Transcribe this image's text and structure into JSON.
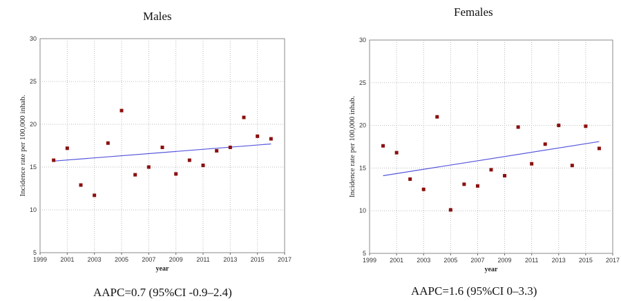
{
  "chart_data": [
    {
      "type": "scatter",
      "title": "Males",
      "xlabel": "year",
      "ylabel": "Incidence rate per 100,000 inhab.",
      "xlim": [
        1999,
        2017
      ],
      "ylim": [
        5,
        30
      ],
      "x_ticks": [
        "1999",
        "2001",
        "2003",
        "2005",
        "2007",
        "2009",
        "2011",
        "2013",
        "2015",
        "2017"
      ],
      "y_ticks": [
        "5",
        "10",
        "15",
        "20",
        "25",
        "30"
      ],
      "grid": true,
      "series": [
        {
          "x": [
            2000,
            2001,
            2002,
            2003,
            2004,
            2005,
            2006,
            2007,
            2008,
            2009,
            2010,
            2011,
            2012,
            2013,
            2014,
            2015,
            2016
          ],
          "y": [
            15.8,
            17.2,
            12.9,
            11.7,
            17.8,
            21.6,
            14.1,
            15.0,
            17.3,
            14.2,
            15.8,
            15.2,
            16.9,
            17.3,
            20.8,
            18.6,
            18.3
          ]
        }
      ],
      "trend": {
        "x": [
          2000,
          2016
        ],
        "y": [
          15.7,
          17.7
        ]
      },
      "point_color": "#8b1010",
      "trend_color": "#5555dd",
      "caption": "AAPC=0.7 (95%CI -0.9–2.4)"
    },
    {
      "type": "scatter",
      "title": "Females",
      "xlabel": "year",
      "ylabel": "Incidence rate per 100,000 inhab.",
      "xlim": [
        1999,
        2017
      ],
      "ylim": [
        5,
        30
      ],
      "x_ticks": [
        "1999",
        "2001",
        "2003",
        "2005",
        "2007",
        "2009",
        "2011",
        "2013",
        "2015",
        "2017"
      ],
      "y_ticks": [
        "5",
        "10",
        "15",
        "20",
        "25",
        "30"
      ],
      "grid": true,
      "series": [
        {
          "x": [
            2000,
            2001,
            2002,
            2003,
            2004,
            2005,
            2006,
            2007,
            2008,
            2009,
            2010,
            2011,
            2012,
            2013,
            2014,
            2015,
            2016
          ],
          "y": [
            17.6,
            16.8,
            13.7,
            12.5,
            21.0,
            10.1,
            13.1,
            12.9,
            14.8,
            14.1,
            19.8,
            15.5,
            17.8,
            20.0,
            15.3,
            19.9,
            17.3
          ]
        }
      ],
      "trend": {
        "x": [
          2000,
          2016
        ],
        "y": [
          14.1,
          18.1
        ]
      },
      "point_color": "#8b1010",
      "trend_color": "#5555dd",
      "caption": "AAPC=1.6 (95%CI 0–3.3)"
    }
  ]
}
